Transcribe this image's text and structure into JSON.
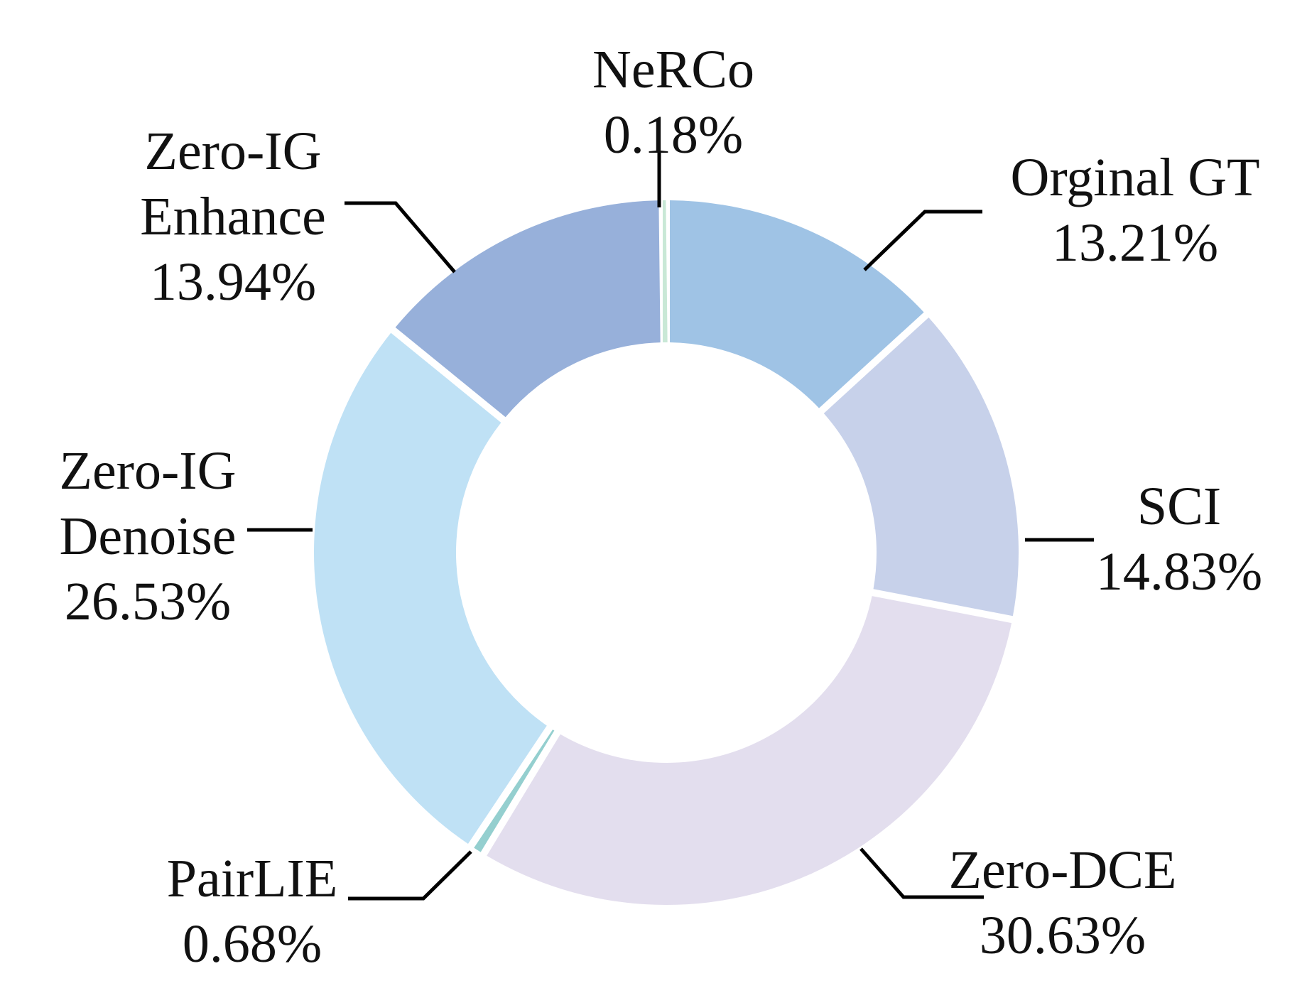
{
  "chart_data": {
    "type": "pie",
    "variant": "donut",
    "title": "",
    "slices": [
      {
        "name": "Orginal GT",
        "label_lines": [
          "Orginal GT"
        ],
        "percent_label": "13.21%",
        "value": 13.21,
        "color": "#9FC3E5"
      },
      {
        "name": "SCI",
        "label_lines": [
          "SCI"
        ],
        "percent_label": "14.83%",
        "value": 14.83,
        "color": "#C7D1EA"
      },
      {
        "name": "Zero-DCE",
        "label_lines": [
          "Zero-DCE"
        ],
        "percent_label": "30.63%",
        "value": 30.63,
        "color": "#E3DEEE"
      },
      {
        "name": "PairLIE",
        "label_lines": [
          "PairLIE"
        ],
        "percent_label": "0.68%",
        "value": 0.68,
        "color": "#94CFCF"
      },
      {
        "name": "Zero-IG Denoise",
        "label_lines": [
          "Zero-IG",
          "Denoise"
        ],
        "percent_label": "26.53%",
        "value": 26.53,
        "color": "#BFE1F5"
      },
      {
        "name": "Zero-IG Enhance",
        "label_lines": [
          "Zero-IG",
          "Enhance"
        ],
        "percent_label": "13.94%",
        "value": 13.94,
        "color": "#97B0DA"
      },
      {
        "name": "NeRCo",
        "label_lines": [
          "NeRCo"
        ],
        "percent_label": "0.18%",
        "value": 0.18,
        "color": "#C9E8D6"
      }
    ],
    "start_angle": "12 o'clock",
    "direction": "clockwise",
    "legend": "none",
    "label_style": "outside labels with leader lines"
  }
}
